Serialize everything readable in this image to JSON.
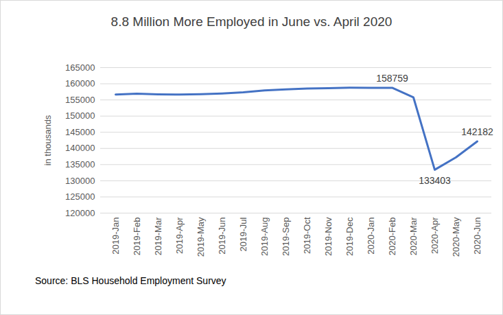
{
  "chart_data": {
    "type": "line",
    "title": "8.8 Million More Employed in June vs. April 2020",
    "y_label": "in thousands",
    "source": "Source: BLS Household Employment Survey",
    "categories": [
      "2019-Jan",
      "2019-Feb",
      "2019-Mar",
      "2019-Apr",
      "2019-May",
      "2019-Jun",
      "2019-Jul",
      "2019-Aug",
      "2019-Sep",
      "2019-Oct",
      "2019-Nov",
      "2019-Dec",
      "2020-Jan",
      "2020-Feb",
      "2020-Mar",
      "2020-Apr",
      "2020-May",
      "2020-Jun"
    ],
    "values": [
      156694,
      156949,
      156748,
      156645,
      156758,
      157005,
      157346,
      157931,
      158269,
      158544,
      158611,
      158803,
      158714,
      158759,
      155772,
      133403,
      137242,
      142182
    ],
    "color": "#4472c4",
    "ylim": [
      120000,
      165000
    ],
    "yticks": [
      120000,
      125000,
      130000,
      135000,
      140000,
      145000,
      150000,
      155000,
      160000,
      165000
    ],
    "grid": true,
    "annotations": [
      {
        "x": "2020-Feb",
        "label": "158759"
      },
      {
        "x": "2020-Apr",
        "label": "133403"
      },
      {
        "x": "2020-Jun",
        "label": "142182"
      }
    ]
  }
}
